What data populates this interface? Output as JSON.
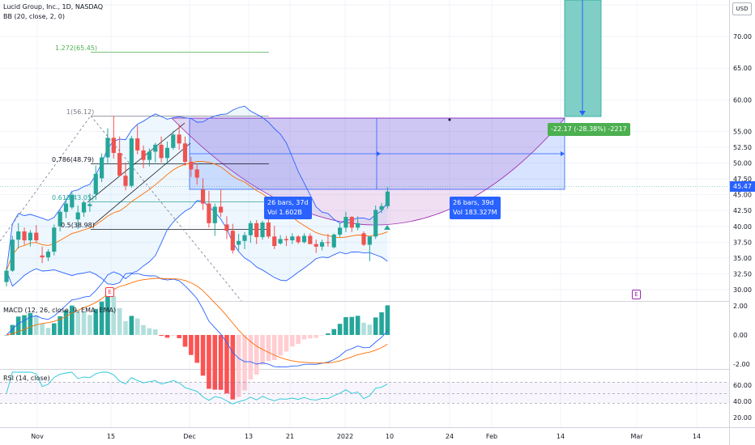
{
  "header": {
    "title": "Lucid Group, Inc., 1D, NASDAQ",
    "bb_label": "BB (20, close, 2, 0)"
  },
  "currency": "USD",
  "current_price": "45.47",
  "price_axis": [
    "75.00",
    "70.00",
    "65.00",
    "60.00",
    "55.00",
    "52.50",
    "50.00",
    "47.50",
    "45.00",
    "42.50",
    "40.00",
    "37.50",
    "35.00",
    "32.50",
    "30.00"
  ],
  "macd_axis": [
    "2.00",
    "0.00",
    "-2.00"
  ],
  "rsi_axis": [
    "60.00",
    "40.00",
    "20.00"
  ],
  "time_axis": [
    "Nov",
    "15",
    "Dec",
    "13",
    "21",
    "2022",
    "10",
    "24",
    "Feb",
    "14",
    "Mar",
    "14"
  ],
  "fib_labels": [
    "1.272(65.45)",
    "1(56.12)",
    "0.786(48.79)",
    "0.618(43.05)",
    "0.5(38.98)"
  ],
  "measure_left": {
    "bars": "26 bars, 37d",
    "vol": "Vol 1.602B"
  },
  "measure_right": {
    "bars": "26 bars, 39d",
    "vol": "Vol 183.327M"
  },
  "target_label": "-22.17 (-28.38%) -2217",
  "macd_label": "MACD (12, 26, close, 9, EMA, EMA)",
  "rsi_label": "RSI (14, close)",
  "earnings_marker": "E",
  "colors": {
    "up": "#26a69a",
    "down": "#ef5350",
    "bb": "#2962ff",
    "accent": "#2962ff",
    "target": "#4caf50"
  },
  "chart_data": {
    "type": "candlestick",
    "candles": [
      [
        31.2,
        33.5,
        30.5,
        33.0
      ],
      [
        33.0,
        38.5,
        32.8,
        37.9
      ],
      [
        37.9,
        40.5,
        36.5,
        39.2
      ],
      [
        39.2,
        39.8,
        37.1,
        37.8
      ],
      [
        37.8,
        39.4,
        36.8,
        39.0
      ],
      [
        39.0,
        40.2,
        37.4,
        37.8
      ],
      [
        35.4,
        36.8,
        34.2,
        35.1
      ],
      [
        35.1,
        36.4,
        34.5,
        36.0
      ],
      [
        36.0,
        40.3,
        35.4,
        39.8
      ],
      [
        40.0,
        42.6,
        39.2,
        42.3
      ],
      [
        42.3,
        44.5,
        41.3,
        43.6
      ],
      [
        43.0,
        45.4,
        42.7,
        45.0
      ],
      [
        41.1,
        43.3,
        39.6,
        42.2
      ],
      [
        42.2,
        44.1,
        41.5,
        43.8
      ],
      [
        43.2,
        45.2,
        42.3,
        43.5
      ],
      [
        45.1,
        49.6,
        44.2,
        48.3
      ],
      [
        47.6,
        51.5,
        47.0,
        50.9
      ],
      [
        50.9,
        55.5,
        49.8,
        54.0
      ],
      [
        54.0,
        57.4,
        50.7,
        51.6
      ],
      [
        51.6,
        54.2,
        47.9,
        48.0
      ],
      [
        48.0,
        50.1,
        45.7,
        46.4
      ],
      [
        46.4,
        54.3,
        46.1,
        53.9
      ],
      [
        53.9,
        56.0,
        51.4,
        52.0
      ],
      [
        52.0,
        52.8,
        49.2,
        50.5
      ],
      [
        50.5,
        52.3,
        49.5,
        51.8
      ],
      [
        51.8,
        53.2,
        50.1,
        52.9
      ],
      [
        52.9,
        54.2,
        50.1,
        50.8
      ],
      [
        50.8,
        53.4,
        49.9,
        52.4
      ],
      [
        52.4,
        55.1,
        52.1,
        54.5
      ],
      [
        54.5,
        56.1,
        52.1,
        53.1
      ],
      [
        53.1,
        54.2,
        49.6,
        50.2
      ],
      [
        50.2,
        51.0,
        47.8,
        49.0
      ],
      [
        49.0,
        49.9,
        46.6,
        47.7
      ],
      [
        45.8,
        47.6,
        42.6,
        43.6
      ],
      [
        43.6,
        45.6,
        39.8,
        40.5
      ],
      [
        40.5,
        43.6,
        38.5,
        43.1
      ],
      [
        43.1,
        45.9,
        41.5,
        42.2
      ],
      [
        40.3,
        41.6,
        38.0,
        39.3
      ],
      [
        39.3,
        40.4,
        35.7,
        36.2
      ],
      [
        37.1,
        38.8,
        36.2,
        37.7
      ],
      [
        37.7,
        39.1,
        36.4,
        38.6
      ],
      [
        38.6,
        40.9,
        37.4,
        40.5
      ],
      [
        40.5,
        41.0,
        37.2,
        38.3
      ],
      [
        38.3,
        40.9,
        37.9,
        40.6
      ],
      [
        40.6,
        41.3,
        38.1,
        38.4
      ],
      [
        38.4,
        40.1,
        36.4,
        36.9
      ],
      [
        37.3,
        38.6,
        37.1,
        38.0
      ],
      [
        38.0,
        38.5,
        36.9,
        37.8
      ],
      [
        37.8,
        38.9,
        37.2,
        38.4
      ],
      [
        38.4,
        38.6,
        37.2,
        37.5
      ],
      [
        37.5,
        38.9,
        37.3,
        38.5
      ],
      [
        38.5,
        38.9,
        37.2,
        37.2
      ],
      [
        37.2,
        37.9,
        35.8,
        36.8
      ],
      [
        36.8,
        37.9,
        36.2,
        37.5
      ],
      [
        37.5,
        38.8,
        36.8,
        37.4
      ],
      [
        36.7,
        38.9,
        36.5,
        38.7
      ],
      [
        38.7,
        40.5,
        38.3,
        39.8
      ],
      [
        39.8,
        42.3,
        39.1,
        41.5
      ],
      [
        41.5,
        41.6,
        39.1,
        39.8
      ],
      [
        39.8,
        41.6,
        39.4,
        40.5
      ],
      [
        38.9,
        39.2,
        36.9,
        37.1
      ],
      [
        37.1,
        38.5,
        34.5,
        38.4
      ],
      [
        38.4,
        43.3,
        38.0,
        42.6
      ],
      [
        42.6,
        43.7,
        42.1,
        43.2
      ],
      [
        43.2,
        46.2,
        42.8,
        45.5
      ]
    ],
    "measure_target": {
      "change": -22.17,
      "percent": -28.38,
      "ticks": -2217
    }
  }
}
